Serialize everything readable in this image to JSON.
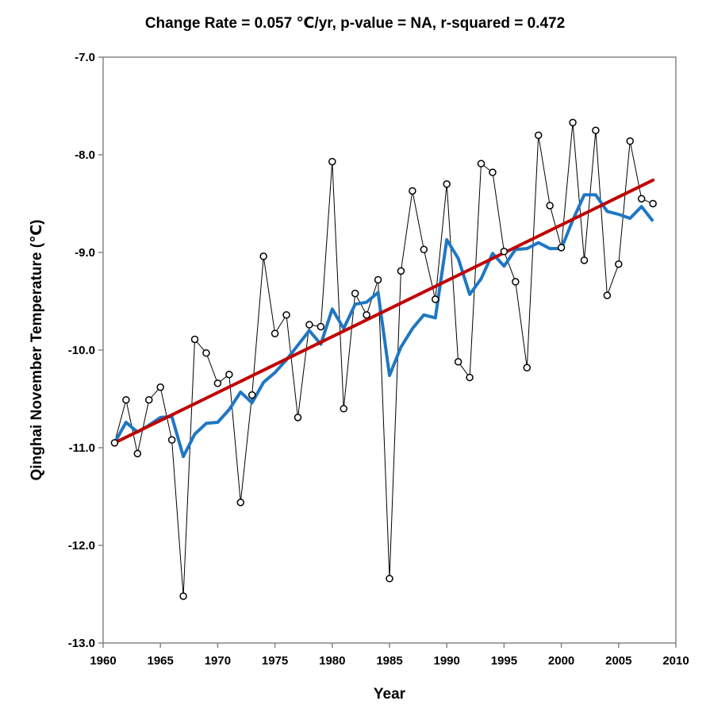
{
  "chart_data": {
    "type": "line",
    "title": "Change Rate =  0.057 ℃/yr,  p-value =  NA,  r-squared =  0.472",
    "xlabel": "Year",
    "ylabel": "Qinghai November Temperature (℃)",
    "xlim": [
      1960,
      2010
    ],
    "ylim": [
      -13.0,
      -7.0
    ],
    "xticks": [
      "1960",
      "1965",
      "1970",
      "1975",
      "1980",
      "1985",
      "1990",
      "1995",
      "2000",
      "2005",
      "2010"
    ],
    "yticks": [
      "-13.0",
      "-12.0",
      "-11.0",
      "-10.0",
      "-9.0",
      "-8.0",
      "-7.0"
    ],
    "grid": false,
    "legend": "none",
    "series": [
      {
        "kind": "observed",
        "color": "#000000",
        "marker": "open-circle",
        "x": [
          1961,
          1962,
          1963,
          1964,
          1965,
          1966,
          1967,
          1968,
          1969,
          1970,
          1971,
          1972,
          1973,
          1974,
          1975,
          1976,
          1977,
          1978,
          1979,
          1980,
          1981,
          1982,
          1983,
          1984,
          1985,
          1986,
          1987,
          1988,
          1989,
          1990,
          1991,
          1992,
          1993,
          1994,
          1995,
          1996,
          1997,
          1998,
          1999,
          2000,
          2001,
          2002,
          2003,
          2004,
          2005,
          2006,
          2007,
          2008
        ],
        "y": [
          -10.95,
          -10.51,
          -11.06,
          -10.51,
          -10.38,
          -10.92,
          -12.52,
          -9.89,
          -10.03,
          -10.34,
          -10.25,
          -11.56,
          -10.46,
          -9.04,
          -9.83,
          -9.64,
          -10.69,
          -9.74,
          -9.76,
          -8.07,
          -10.6,
          -9.42,
          -9.64,
          -9.28,
          -12.34,
          -9.19,
          -8.37,
          -8.97,
          -9.48,
          -8.3,
          -10.12,
          -10.28,
          -8.09,
          -8.18,
          -8.99,
          -9.3,
          -10.18,
          -7.8,
          -8.52,
          -8.95,
          -7.67,
          -9.08,
          -7.75,
          -9.44,
          -9.12,
          -7.86,
          -8.45,
          -8.5
        ]
      },
      {
        "kind": "smoothed",
        "color": "#1f77c4",
        "x": [
          1961,
          1962,
          1963,
          1964,
          1965,
          1966,
          1967,
          1968,
          1969,
          1970,
          1971,
          1972,
          1973,
          1974,
          1975,
          1976,
          1977,
          1978,
          1979,
          1980,
          1981,
          1982,
          1983,
          1984,
          1985,
          1986,
          1987,
          1988,
          1989,
          1990,
          1991,
          1992,
          1993,
          1994,
          1995,
          1996,
          1997,
          1998,
          1999,
          2000,
          2001,
          2002,
          2003,
          2004,
          2005,
          2006,
          2007,
          2008
        ],
        "y": [
          -10.95,
          -10.74,
          -10.84,
          -10.77,
          -10.69,
          -10.68,
          -11.09,
          -10.86,
          -10.75,
          -10.74,
          -10.61,
          -10.43,
          -10.54,
          -10.33,
          -10.23,
          -10.1,
          -9.95,
          -9.8,
          -9.94,
          -9.58,
          -9.78,
          -9.53,
          -9.51,
          -9.41,
          -10.26,
          -9.97,
          -9.78,
          -9.64,
          -9.67,
          -8.87,
          -9.06,
          -9.43,
          -9.27,
          -9.01,
          -9.14,
          -8.97,
          -8.96,
          -8.9,
          -8.96,
          -8.96,
          -8.67,
          -8.41,
          -8.41,
          -8.58,
          -8.61,
          -8.65,
          -8.53,
          -8.68
        ]
      },
      {
        "kind": "trend",
        "color": "#c00000",
        "x": [
          1961,
          2008
        ],
        "y": [
          -10.95,
          -8.26
        ]
      }
    ]
  }
}
